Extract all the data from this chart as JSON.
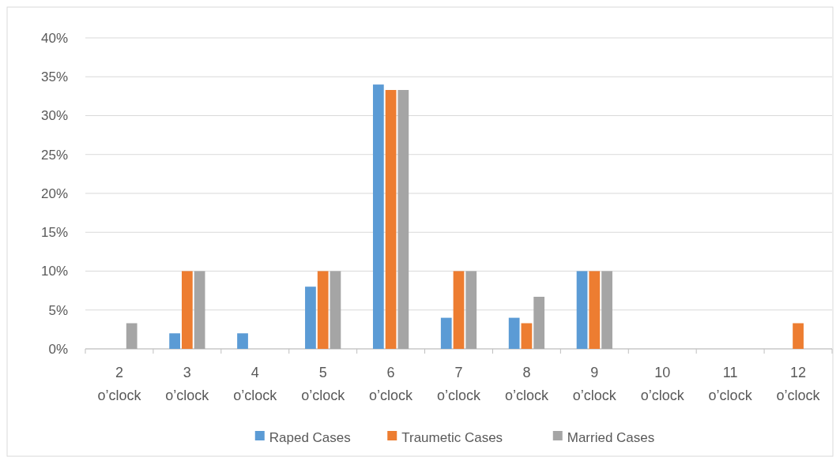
{
  "chart_data": {
    "type": "bar",
    "categories": [
      "2 o’clock",
      "3 o’clock",
      "4 o’clock",
      "5 o’clock",
      "6 o’clock",
      "7 o’clock",
      "8 o’clock",
      "9 o’clock",
      "10 o’clock",
      "11 o’clock",
      "12 o’clock"
    ],
    "series": [
      {
        "name": "Raped Cases",
        "color": "#5b9bd5",
        "values": [
          0,
          2,
          2,
          8,
          34,
          4,
          4,
          10,
          0,
          0,
          0
        ]
      },
      {
        "name": "Traumetic Cases",
        "color": "#ed7d31",
        "values": [
          0,
          10,
          0,
          10,
          33.3,
          10,
          3.3,
          10,
          0,
          0,
          3.3
        ]
      },
      {
        "name": "Married Cases",
        "color": "#a5a5a5",
        "values": [
          3.3,
          10,
          0,
          10,
          33.3,
          10,
          6.7,
          10,
          0,
          0,
          0
        ]
      }
    ],
    "ylim": [
      0,
      40
    ],
    "yticks": [
      {
        "value": 0,
        "label": "0%"
      },
      {
        "value": 5,
        "label": "5%"
      },
      {
        "value": 10,
        "label": "10%"
      },
      {
        "value": 15,
        "label": "15%"
      },
      {
        "value": 20,
        "label": "20%"
      },
      {
        "value": 25,
        "label": "25%"
      },
      {
        "value": 30,
        "label": "30%"
      },
      {
        "value": 35,
        "label": "35%"
      },
      {
        "value": 40,
        "label": "40%"
      }
    ],
    "grid": "y",
    "legend": "bottom"
  }
}
